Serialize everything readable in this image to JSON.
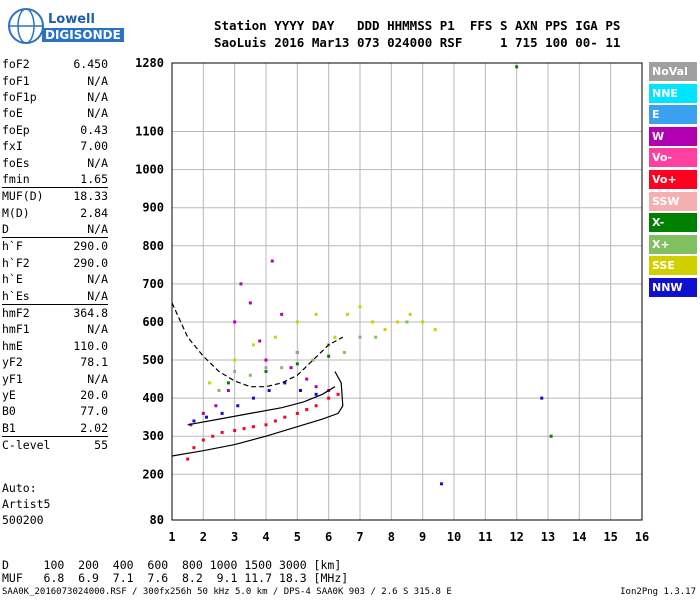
{
  "logo": {
    "line1": "Lowell",
    "line2": "DIGISONDE"
  },
  "header": {
    "line1": "Station YYYY DAY   DDD HHMMSS P1  FFS S AXN PPS IGA PS",
    "line2": "SaoLuis 2016 Mar13 073 024000 RSF     1 715 100 00- 11"
  },
  "params": [
    [
      {
        "k": "foF2",
        "v": "6.450"
      },
      {
        "k": "foF1",
        "v": "N/A"
      },
      {
        "k": "foF1p",
        "v": "N/A"
      },
      {
        "k": "foE",
        "v": "N/A"
      },
      {
        "k": "foEp",
        "v": "0.43"
      },
      {
        "k": "fxI",
        "v": "7.00"
      },
      {
        "k": "foEs",
        "v": "N/A"
      },
      {
        "k": "fmin",
        "v": "1.65"
      }
    ],
    [
      {
        "k": "MUF(D)",
        "v": "18.33"
      },
      {
        "k": "M(D)",
        "v": "2.84"
      },
      {
        "k": "D",
        "v": "N/A"
      }
    ],
    [
      {
        "k": "h`F",
        "v": "290.0"
      },
      {
        "k": "h`F2",
        "v": "290.0"
      },
      {
        "k": "h`E",
        "v": "N/A"
      },
      {
        "k": "h`Es",
        "v": "N/A"
      }
    ],
    [
      {
        "k": "hmF2",
        "v": "364.8"
      },
      {
        "k": "hmF1",
        "v": "N/A"
      },
      {
        "k": "hmE",
        "v": "110.0"
      },
      {
        "k": "yF2",
        "v": "78.1"
      },
      {
        "k": "yF1",
        "v": "N/A"
      },
      {
        "k": "yE",
        "v": "20.0"
      },
      {
        "k": "B0",
        "v": "77.0"
      },
      {
        "k": "B1",
        "v": "2.02"
      }
    ],
    [
      {
        "k": "C-level",
        "v": "55"
      }
    ]
  ],
  "auto": [
    "Auto:",
    "Artist5",
    "500200"
  ],
  "legend": [
    {
      "label": "NoVal",
      "color": "#a0a0a0"
    },
    {
      "label": "NNE",
      "color": "#00e5ff"
    },
    {
      "label": "E",
      "color": "#3aa0f0"
    },
    {
      "label": "W",
      "color": "#b000b0"
    },
    {
      "label": "Vo-",
      "color": "#ff40a0"
    },
    {
      "label": "Vo+",
      "color": "#ff0020"
    },
    {
      "label": "SSW",
      "color": "#f4b0b0"
    },
    {
      "label": "X-",
      "color": "#008000"
    },
    {
      "label": "X+",
      "color": "#80c060"
    },
    {
      "label": "SSE",
      "color": "#d0d000"
    },
    {
      "label": "NNW",
      "color": "#1010d0"
    }
  ],
  "bottom": {
    "d_line": "D     100  200  400  600  800 1000 1500 3000 [km]",
    "muf_line": "MUF   6.8  6.9  7.1  7.6  8.2  9.1 11.7 18.3 [MHz]"
  },
  "footer": {
    "left": "SAA0K_2016073024000.RSF / 300fx256h 50 kHz 5.0 km / DPS-4 SAA0K 903 / 2.6 S 315.8 E",
    "right": "Ion2Png 1.3.17"
  },
  "chart_data": {
    "type": "scatter",
    "title": "",
    "xlabel": "",
    "ylabel": "",
    "xlim": [
      1,
      16
    ],
    "ylim": [
      80,
      1280
    ],
    "x_ticks": [
      1,
      2,
      3,
      4,
      5,
      6,
      7,
      8,
      9,
      10,
      11,
      12,
      13,
      14,
      15,
      16
    ],
    "y_ticks": [
      80,
      200,
      300,
      400,
      500,
      600,
      700,
      800,
      900,
      1000,
      1100,
      1280
    ],
    "grid": true,
    "series": [
      {
        "name": "Vo+",
        "color": "#ff0020",
        "points": [
          [
            1.5,
            240
          ],
          [
            1.7,
            270
          ],
          [
            2,
            290
          ],
          [
            2.3,
            300
          ],
          [
            2.6,
            310
          ],
          [
            3,
            315
          ],
          [
            3.3,
            320
          ],
          [
            3.6,
            325
          ],
          [
            4,
            330
          ],
          [
            4.3,
            340
          ],
          [
            4.6,
            350
          ],
          [
            5,
            360
          ],
          [
            5.3,
            370
          ],
          [
            5.6,
            380
          ],
          [
            6,
            400
          ],
          [
            6.3,
            410
          ]
        ]
      },
      {
        "name": "W",
        "color": "#b000b0",
        "points": [
          [
            1.6,
            330
          ],
          [
            2,
            360
          ],
          [
            2.4,
            380
          ],
          [
            2.8,
            420
          ],
          [
            3,
            600
          ],
          [
            3.2,
            700
          ],
          [
            3.5,
            650
          ],
          [
            3.8,
            550
          ],
          [
            4,
            500
          ],
          [
            4.2,
            760
          ],
          [
            4.5,
            620
          ],
          [
            4.8,
            480
          ],
          [
            5,
            520
          ],
          [
            5.3,
            450
          ],
          [
            5.6,
            430
          ],
          [
            6,
            420
          ]
        ]
      },
      {
        "name": "SSE",
        "color": "#d0d000",
        "points": [
          [
            2.2,
            440
          ],
          [
            3,
            500
          ],
          [
            3.6,
            540
          ],
          [
            4.3,
            560
          ],
          [
            5,
            600
          ],
          [
            5.6,
            620
          ],
          [
            6.2,
            560
          ],
          [
            6.6,
            620
          ],
          [
            7,
            640
          ],
          [
            7.4,
            600
          ],
          [
            7.8,
            580
          ],
          [
            8.2,
            600
          ],
          [
            8.6,
            620
          ],
          [
            9,
            600
          ],
          [
            9.4,
            580
          ]
        ]
      },
      {
        "name": "NNW",
        "color": "#1010d0",
        "points": [
          [
            1.7,
            340
          ],
          [
            2.1,
            350
          ],
          [
            2.6,
            360
          ],
          [
            3.1,
            380
          ],
          [
            3.6,
            400
          ],
          [
            4.1,
            420
          ],
          [
            4.6,
            440
          ],
          [
            5.1,
            420
          ],
          [
            5.6,
            410
          ],
          [
            9.6,
            175
          ],
          [
            12.8,
            400
          ]
        ]
      },
      {
        "name": "X+",
        "color": "#80c060",
        "points": [
          [
            2.5,
            420
          ],
          [
            3.5,
            460
          ],
          [
            4.5,
            480
          ],
          [
            5.5,
            500
          ],
          [
            6.5,
            520
          ],
          [
            7.5,
            560
          ],
          [
            8.5,
            600
          ]
        ]
      },
      {
        "name": "X-",
        "color": "#008000",
        "points": [
          [
            2.8,
            440
          ],
          [
            4,
            470
          ],
          [
            5,
            490
          ],
          [
            6,
            510
          ],
          [
            12,
            1270
          ],
          [
            13.1,
            300
          ]
        ]
      },
      {
        "name": "NoVal",
        "color": "#a0a0a0",
        "points": [
          [
            3,
            470
          ],
          [
            4,
            480
          ],
          [
            5,
            520
          ],
          [
            6,
            540
          ],
          [
            7,
            560
          ]
        ]
      }
    ],
    "traces": [
      {
        "style": "solid",
        "points": [
          [
            1,
            248
          ],
          [
            2,
            262
          ],
          [
            3,
            278
          ],
          [
            4,
            300
          ],
          [
            5,
            325
          ],
          [
            5.8,
            345
          ],
          [
            6.3,
            360
          ],
          [
            6.45,
            380
          ],
          [
            6.4,
            440
          ],
          [
            6.2,
            470
          ]
        ]
      },
      {
        "style": "solid",
        "points": [
          [
            1.5,
            330
          ],
          [
            2.5,
            345
          ],
          [
            3.5,
            360
          ],
          [
            4.5,
            375
          ],
          [
            5.2,
            390
          ],
          [
            5.8,
            410
          ],
          [
            6.2,
            430
          ]
        ]
      },
      {
        "style": "dashed",
        "points": [
          [
            1,
            650
          ],
          [
            1.5,
            560
          ],
          [
            2,
            510
          ],
          [
            2.5,
            470
          ],
          [
            3,
            445
          ],
          [
            3.5,
            430
          ],
          [
            4,
            430
          ],
          [
            4.5,
            440
          ],
          [
            5,
            460
          ],
          [
            5.5,
            500
          ],
          [
            6,
            540
          ],
          [
            6.45,
            560
          ]
        ]
      }
    ]
  }
}
